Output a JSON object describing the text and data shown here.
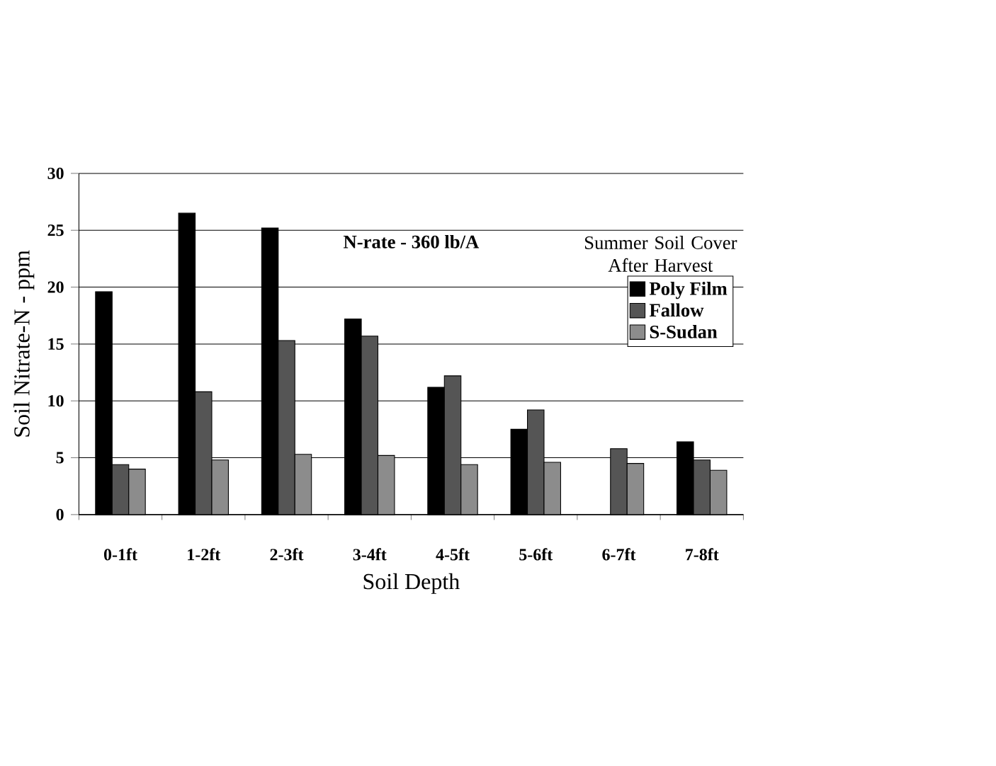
{
  "chart_data": {
    "type": "bar",
    "categories": [
      "0-1ft",
      "1-2ft",
      "2-3ft",
      "3-4ft",
      "4-5ft",
      "5-6ft",
      "6-7ft",
      "7-8ft"
    ],
    "series": [
      {
        "name": "Poly Film",
        "color": "#000000",
        "values": [
          19.6,
          26.5,
          25.2,
          17.2,
          11.2,
          7.5,
          null,
          6.4
        ]
      },
      {
        "name": "Fallow",
        "color": "#555555",
        "values": [
          4.4,
          10.8,
          15.3,
          15.7,
          12.2,
          9.2,
          5.8,
          4.8
        ]
      },
      {
        "name": "S-Sudan",
        "color": "#8c8c8c",
        "values": [
          4.0,
          4.8,
          5.3,
          5.2,
          4.4,
          4.6,
          4.5,
          3.9
        ]
      }
    ],
    "xlabel": "Soil Depth",
    "ylabel": "Soil Nitrate-N - ppm",
    "legend_title": "Summer Soil Cover After Harvest",
    "annotations": [
      "N-rate - 360 lb/A"
    ],
    "ylim": [
      0,
      30
    ],
    "yticks": [
      0,
      5,
      10,
      15,
      20,
      25,
      30
    ],
    "grid": "y",
    "legend": "top right"
  }
}
